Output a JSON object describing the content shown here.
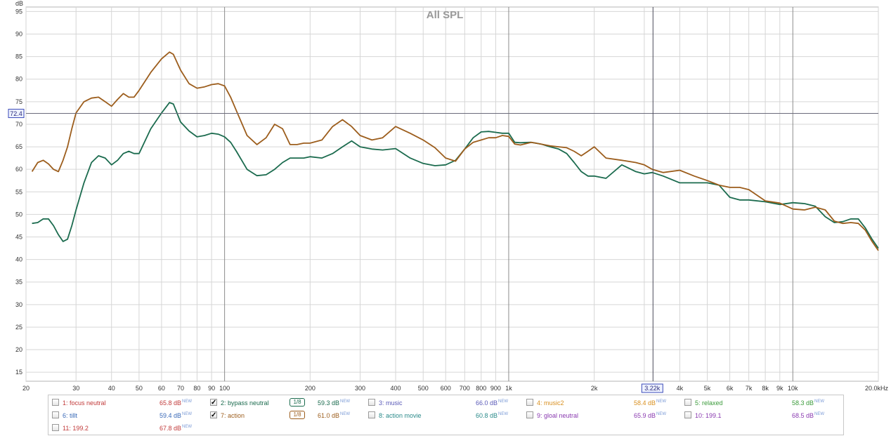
{
  "chart_data": {
    "type": "line",
    "title": "All SPL",
    "y_unit": "dB",
    "x_unit": "kHz",
    "x_scale": "log",
    "xlim": [
      20,
      20000
    ],
    "ylim": [
      13,
      96
    ],
    "grid": true,
    "y_ticks": [
      "95",
      "90",
      "85",
      "80",
      "75",
      "70",
      "65",
      "60",
      "55",
      "50",
      "45",
      "40",
      "35",
      "30",
      "25",
      "20",
      "15"
    ],
    "x_ticks": [
      {
        "v": 20,
        "label": "20"
      },
      {
        "v": 30,
        "label": "30"
      },
      {
        "v": 40,
        "label": "40"
      },
      {
        "v": 50,
        "label": "50"
      },
      {
        "v": 60,
        "label": "60"
      },
      {
        "v": 70,
        "label": "70"
      },
      {
        "v": 80,
        "label": "80"
      },
      {
        "v": 90,
        "label": "90"
      },
      {
        "v": 100,
        "label": "100"
      },
      {
        "v": 200,
        "label": "200"
      },
      {
        "v": 300,
        "label": "300"
      },
      {
        "v": 400,
        "label": "400"
      },
      {
        "v": 500,
        "label": "500"
      },
      {
        "v": 600,
        "label": "600"
      },
      {
        "v": 700,
        "label": "700"
      },
      {
        "v": 800,
        "label": "800"
      },
      {
        "v": 900,
        "label": "900"
      },
      {
        "v": 1000,
        "label": "1k"
      },
      {
        "v": 2000,
        "label": "2k"
      },
      {
        "v": 4000,
        "label": "4k"
      },
      {
        "v": 5000,
        "label": "5k"
      },
      {
        "v": 6000,
        "label": "6k"
      },
      {
        "v": 7000,
        "label": "7k"
      },
      {
        "v": 8000,
        "label": "8k"
      },
      {
        "v": 9000,
        "label": "9k"
      },
      {
        "v": 10000,
        "label": "10k"
      },
      {
        "v": 20000,
        "label": "20.0kHz"
      }
    ],
    "cursor": {
      "y": 72.4,
      "y_label": "72.4",
      "x": 3220,
      "x_label": "3.22k"
    },
    "series": [
      {
        "name": "bypass neutral",
        "color": "#1b6b4e",
        "x": [
          21,
          22,
          23,
          24,
          25,
          26,
          27,
          28,
          29,
          30,
          32,
          34,
          36,
          38,
          40,
          42,
          44,
          46,
          48,
          50,
          55,
          60,
          64,
          66,
          70,
          75,
          80,
          85,
          90,
          95,
          100,
          105,
          110,
          120,
          130,
          140,
          150,
          160,
          170,
          180,
          190,
          200,
          220,
          240,
          260,
          280,
          300,
          330,
          360,
          400,
          450,
          500,
          550,
          600,
          650,
          700,
          750,
          800,
          850,
          900,
          950,
          1000,
          1050,
          1100,
          1200,
          1300,
          1400,
          1500,
          1600,
          1700,
          1800,
          1900,
          2000,
          2200,
          2500,
          2800,
          3000,
          3200,
          3500,
          4000,
          4500,
          5000,
          5500,
          6000,
          6500,
          7000,
          8000,
          9000,
          10000,
          11000,
          12000,
          13000,
          14000,
          15000,
          16000,
          17000,
          18000,
          19000,
          20000
        ],
        "y": [
          48.0,
          48.2,
          49.0,
          49.0,
          47.5,
          45.5,
          44.0,
          44.5,
          47.5,
          51.0,
          57.0,
          61.5,
          63.0,
          62.5,
          61.0,
          62.0,
          63.5,
          64.0,
          63.5,
          63.5,
          69.0,
          72.5,
          74.8,
          74.5,
          70.5,
          68.5,
          67.2,
          67.5,
          68.0,
          67.8,
          67.2,
          66.0,
          64.0,
          60.0,
          58.6,
          58.8,
          60.0,
          61.5,
          62.5,
          62.5,
          62.5,
          62.8,
          62.5,
          63.5,
          65.0,
          66.3,
          65.0,
          64.5,
          64.3,
          64.6,
          62.5,
          61.3,
          60.8,
          61.0,
          62.0,
          64.5,
          67.0,
          68.3,
          68.4,
          68.2,
          68.0,
          68.0,
          66.0,
          65.9,
          66.0,
          65.6,
          65.0,
          64.5,
          63.5,
          61.5,
          59.5,
          58.5,
          58.5,
          58.0,
          61.0,
          59.5,
          59.0,
          59.3,
          58.5,
          57.0,
          57.0,
          57.0,
          56.5,
          53.8,
          53.2,
          53.2,
          52.8,
          52.2,
          52.6,
          52.4,
          51.8,
          49.5,
          48.2,
          48.4,
          49.0,
          49.0,
          47.0,
          44.5,
          42.5
        ]
      },
      {
        "name": "action",
        "color": "#9c5d1c",
        "x": [
          21,
          22,
          23,
          24,
          25,
          26,
          27,
          28,
          29,
          30,
          32,
          34,
          36,
          38,
          40,
          42,
          44,
          46,
          48,
          50,
          55,
          60,
          64,
          66,
          70,
          75,
          80,
          85,
          90,
          95,
          100,
          105,
          110,
          120,
          130,
          140,
          150,
          160,
          170,
          180,
          190,
          200,
          220,
          240,
          260,
          280,
          300,
          330,
          360,
          400,
          450,
          500,
          550,
          600,
          650,
          700,
          750,
          800,
          850,
          900,
          950,
          1000,
          1050,
          1100,
          1200,
          1300,
          1400,
          1500,
          1600,
          1700,
          1800,
          1900,
          2000,
          2200,
          2500,
          2800,
          3000,
          3200,
          3500,
          4000,
          4500,
          5000,
          5500,
          6000,
          6500,
          7000,
          8000,
          9000,
          10000,
          11000,
          12000,
          13000,
          14000,
          15000,
          16000,
          17000,
          18000,
          19000,
          20000
        ],
        "y": [
          59.5,
          61.5,
          62.0,
          61.2,
          60.0,
          59.5,
          62.0,
          65.0,
          69.0,
          72.5,
          75.0,
          75.8,
          76.0,
          75.0,
          74.0,
          75.5,
          76.8,
          76.0,
          76.0,
          77.5,
          81.5,
          84.5,
          86.0,
          85.5,
          82.0,
          79.0,
          78.0,
          78.3,
          78.8,
          79.0,
          78.5,
          76.0,
          73.0,
          67.5,
          65.5,
          67.0,
          70.0,
          69.0,
          65.5,
          65.5,
          65.8,
          65.8,
          66.5,
          69.5,
          71.0,
          69.5,
          67.5,
          66.5,
          67.0,
          69.5,
          68.0,
          66.5,
          64.8,
          62.5,
          61.8,
          64.5,
          66.0,
          66.5,
          67.0,
          67.0,
          67.5,
          67.3,
          65.6,
          65.4,
          66.0,
          65.6,
          65.2,
          65.0,
          64.8,
          64.0,
          63.0,
          64.0,
          65.0,
          62.5,
          62.0,
          61.5,
          61.0,
          60.0,
          59.3,
          59.8,
          58.5,
          57.5,
          56.5,
          56.0,
          56.0,
          55.5,
          53.0,
          52.5,
          51.2,
          51.0,
          51.6,
          51.0,
          48.5,
          48.0,
          48.2,
          48.0,
          46.5,
          44.0,
          42.0
        ]
      }
    ]
  },
  "legend": [
    {
      "name": "1: focus neutral",
      "value": "65.8 dB",
      "color": "#c13a3a",
      "checked": false,
      "badge": "NEW"
    },
    {
      "name": "2: bypass neutral",
      "value": "59.3 dB",
      "color": "#1b6b4e",
      "checked": true,
      "smoothing": "1/8",
      "badge": "NEW"
    },
    {
      "name": "3: music",
      "value": "66.0 dB",
      "color": "#5a5ab8",
      "checked": false,
      "badge": "NEW"
    },
    {
      "name": "4: music2",
      "value": "58.4 dB",
      "color": "#d99020",
      "checked": false,
      "badge": "NEW"
    },
    {
      "name": "5: relaxed",
      "value": "58.3 dB",
      "color": "#3a9a3a",
      "checked": false,
      "badge": "NEW"
    },
    {
      "name": "6: tillt",
      "value": "59.4 dB",
      "color": "#3a6ab8",
      "checked": false,
      "badge": "NEW"
    },
    {
      "name": "7: action",
      "value": "61.0 dB",
      "color": "#9c5d1c",
      "checked": true,
      "smoothing": "1/8",
      "badge": "NEW"
    },
    {
      "name": "8: action movie",
      "value": "60.8 dB",
      "color": "#2a8a8a",
      "checked": false,
      "badge": "NEW"
    },
    {
      "name": "9: gloal neutral",
      "value": "65.9 dB",
      "color": "#8a3ab0",
      "checked": false,
      "badge": "NEW"
    },
    {
      "name": "10: 199.1",
      "value": "68.5 dB",
      "color": "#8a3ab0",
      "checked": false,
      "badge": "NEW"
    },
    {
      "name": "11: 199.2",
      "value": "67.8 dB",
      "color": "#c13a3a",
      "checked": false,
      "badge": "NEW"
    }
  ]
}
